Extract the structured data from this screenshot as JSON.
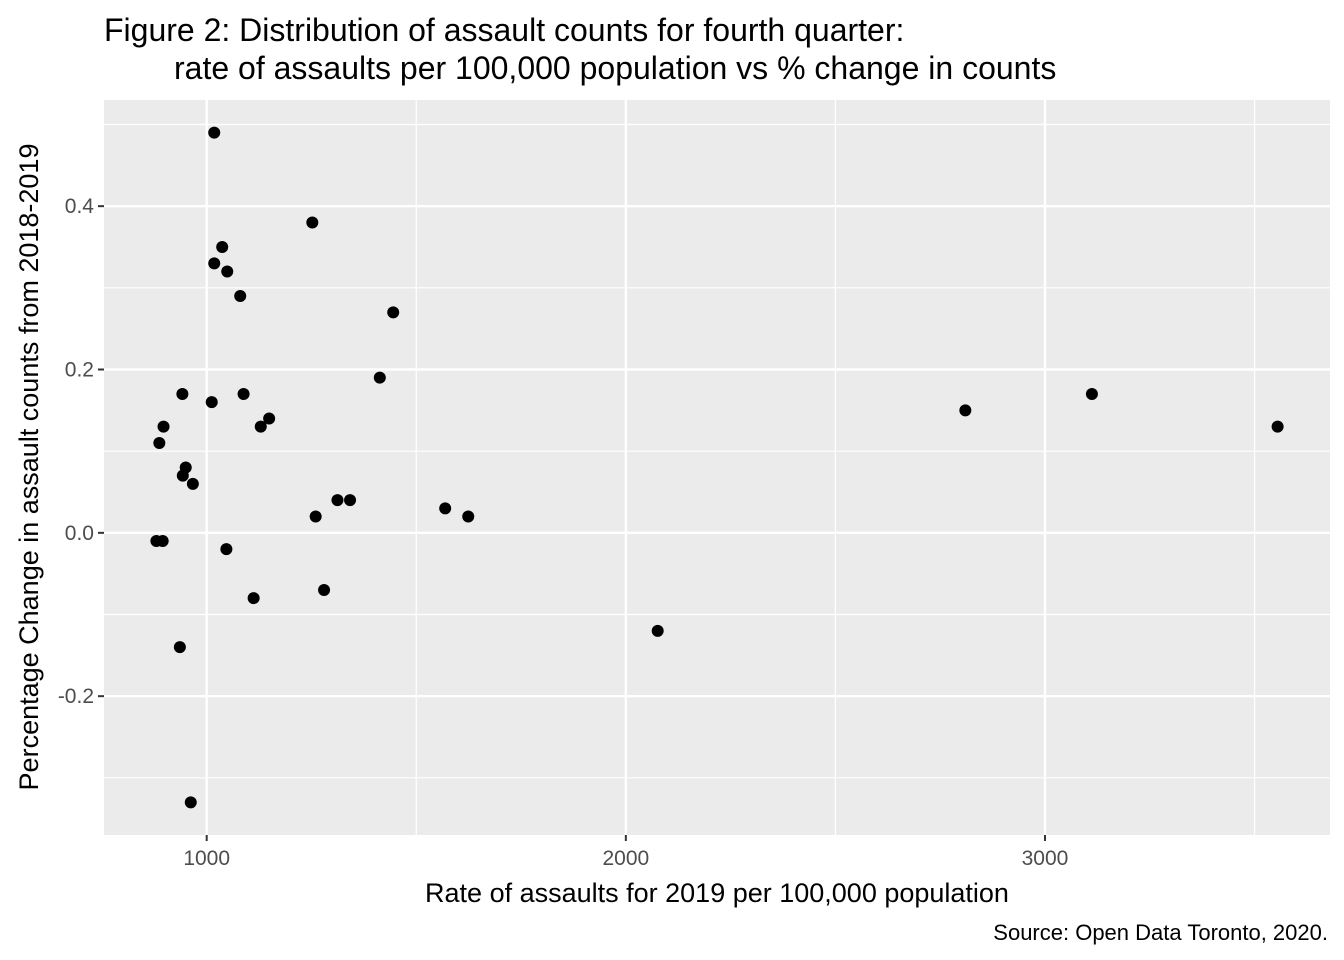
{
  "chart_data": {
    "type": "scatter",
    "title": "Figure 2: Distribution of assault counts for fourth quarter:",
    "subtitle": "rate of assaults per 100,000 population vs % change in counts",
    "xlabel": "Rate of assaults for 2019 per 100,000 population",
    "ylabel": "Percentage Change in assault counts from 2018-2019",
    "caption": "Source: Open Data Toronto, 2020.",
    "xlim": [
      755,
      3680
    ],
    "ylim": [
      -0.37,
      0.53
    ],
    "x_ticks": [
      1000,
      2000,
      3000
    ],
    "x_tick_labels": [
      "1000",
      "2000",
      "3000"
    ],
    "y_ticks": [
      -0.2,
      0.0,
      0.2,
      0.4
    ],
    "y_tick_labels": [
      "-0.2",
      "0.0",
      "0.2",
      "0.4"
    ],
    "grid": true,
    "panel_color": "#ebebeb",
    "grid_color": "#ffffff",
    "point_color": "#000000",
    "points": [
      {
        "x": 1018,
        "y": 0.49
      },
      {
        "x": 1252,
        "y": 0.38
      },
      {
        "x": 1037,
        "y": 0.35
      },
      {
        "x": 1018,
        "y": 0.33
      },
      {
        "x": 1049,
        "y": 0.32
      },
      {
        "x": 1080,
        "y": 0.29
      },
      {
        "x": 1445,
        "y": 0.27
      },
      {
        "x": 1413,
        "y": 0.19
      },
      {
        "x": 2810,
        "y": 0.15
      },
      {
        "x": 3112,
        "y": 0.17
      },
      {
        "x": 3555,
        "y": 0.13
      },
      {
        "x": 942,
        "y": 0.17
      },
      {
        "x": 1088,
        "y": 0.17
      },
      {
        "x": 1012,
        "y": 0.16
      },
      {
        "x": 1149,
        "y": 0.14
      },
      {
        "x": 1129,
        "y": 0.13
      },
      {
        "x": 897,
        "y": 0.13
      },
      {
        "x": 887,
        "y": 0.11
      },
      {
        "x": 950,
        "y": 0.08
      },
      {
        "x": 943,
        "y": 0.07
      },
      {
        "x": 967,
        "y": 0.06
      },
      {
        "x": 1312,
        "y": 0.04
      },
      {
        "x": 1342,
        "y": 0.04
      },
      {
        "x": 1569,
        "y": 0.03
      },
      {
        "x": 1260,
        "y": 0.02
      },
      {
        "x": 1624,
        "y": 0.02
      },
      {
        "x": 880,
        "y": -0.01
      },
      {
        "x": 895,
        "y": -0.01
      },
      {
        "x": 1047,
        "y": -0.02
      },
      {
        "x": 1280,
        "y": -0.07
      },
      {
        "x": 1112,
        "y": -0.08
      },
      {
        "x": 2076,
        "y": -0.12
      },
      {
        "x": 936,
        "y": -0.14
      },
      {
        "x": 962,
        "y": -0.33
      }
    ]
  }
}
